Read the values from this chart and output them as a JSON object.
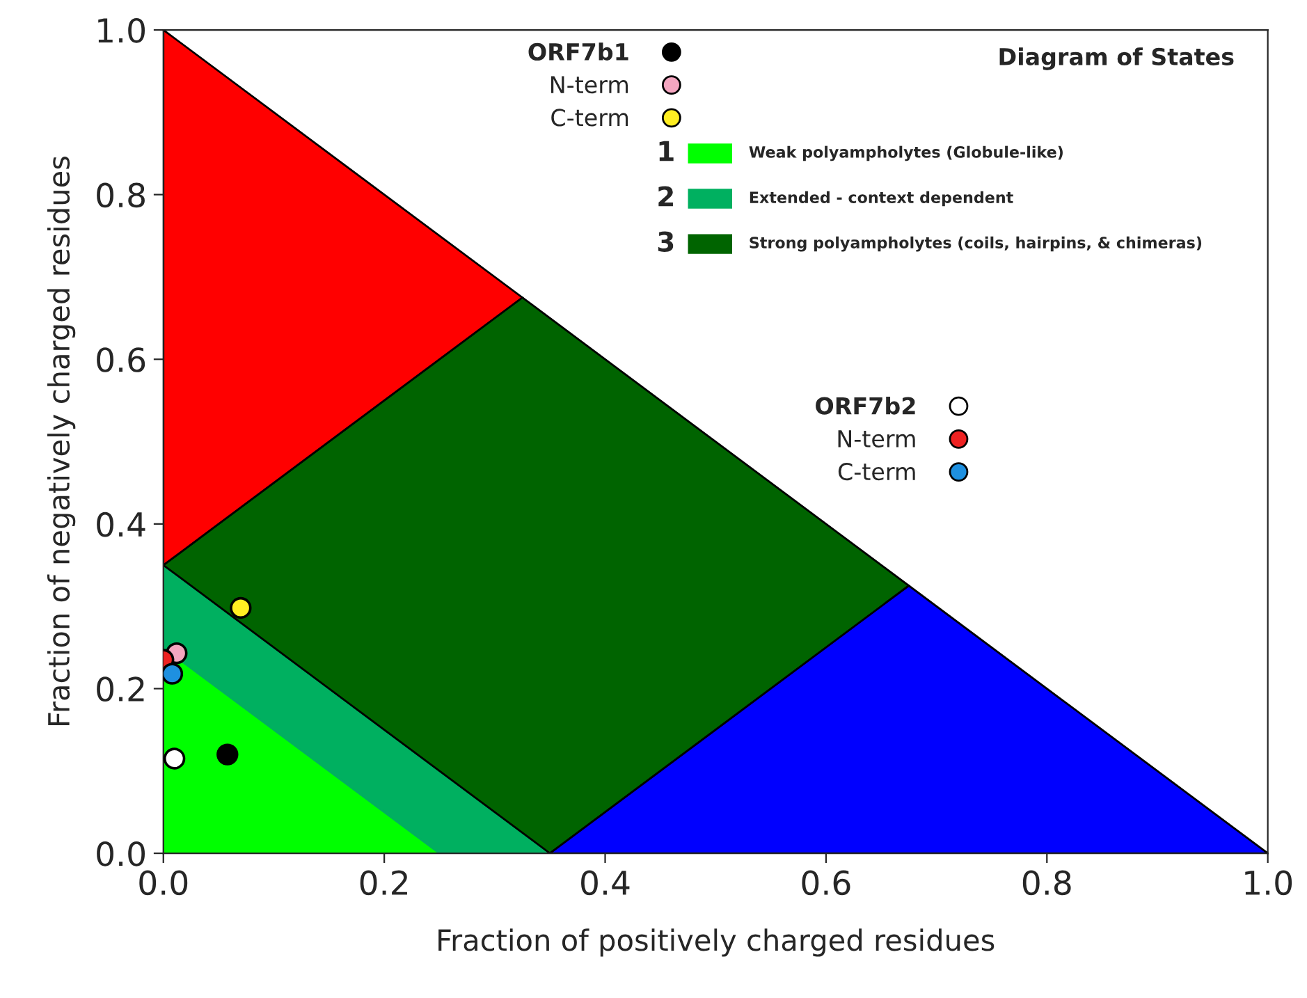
{
  "chart_data": {
    "type": "scatter",
    "xlabel": "Fraction of positively charged residues",
    "ylabel": "Fraction of negatively charged residues",
    "xlim": [
      0,
      1
    ],
    "ylim": [
      0,
      1
    ],
    "xticks": [
      {
        "value": 0,
        "label": "0.0"
      },
      0.2,
      0.4,
      0.6,
      0.8,
      {
        "value": 1,
        "label": "1.0"
      }
    ],
    "yticks": [
      {
        "value": 0,
        "label": "0.0"
      },
      0.2,
      0.4,
      0.6,
      0.8,
      {
        "value": 1,
        "label": "1.0"
      }
    ],
    "grid": false,
    "legend": "top right",
    "marker": "circle",
    "series": [
      {
        "name": "ORF7b1",
        "color": "#000000",
        "x": [
          0.058
        ],
        "values": [
          0.12
        ]
      },
      {
        "name": "N-term",
        "color": "#f4a6c0",
        "x": [
          0.012
        ],
        "values": [
          0.243
        ]
      },
      {
        "name": "C-term",
        "color": "#ffee22",
        "x": [
          0.07
        ],
        "values": [
          0.298
        ]
      },
      {
        "name": "ORF7b2",
        "color": "#ffffff",
        "x": [
          0.01
        ],
        "values": [
          0.115
        ]
      },
      {
        "name": "N-term",
        "color": "#ee2222",
        "x": [
          0.0
        ],
        "values": [
          0.235
        ]
      },
      {
        "name": "C-term",
        "color": "#1e90e0",
        "x": [
          0.008
        ],
        "values": [
          0.218
        ]
      }
    ],
    "annotations": [
      "Diagram of States",
      "1",
      "Weak polyampholytes (Globule-like)",
      "2",
      "Extended - context dependent",
      "3",
      "Strong polyampholytes (coils, hairpins, & chimeras)"
    ]
  }
}
